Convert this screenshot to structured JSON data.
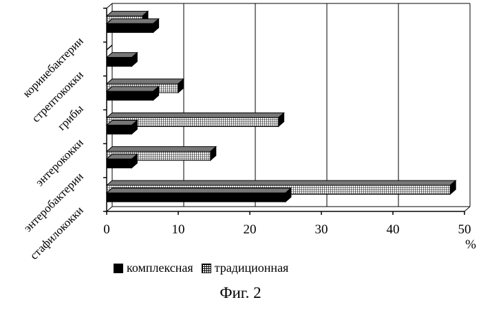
{
  "chart_data": {
    "type": "bar",
    "orientation": "horizontal",
    "categories": [
      "стафилококки",
      "энтеробактерии",
      "энтерококки",
      "грибы",
      "стрептококки",
      "коринебактерии"
    ],
    "series": [
      {
        "name": "комплексная",
        "values": [
          25,
          3.5,
          3.5,
          6.5,
          3.5,
          6.5
        ],
        "fill": "solid",
        "color": "#000000"
      },
      {
        "name": "традиционная",
        "values": [
          48,
          14.5,
          24,
          10,
          0,
          5
        ],
        "fill": "grid-pattern",
        "color": "#000000"
      }
    ],
    "xlim": [
      0,
      50
    ],
    "xticks": [
      0,
      10,
      20,
      30,
      40,
      50
    ],
    "xunit": "%",
    "grid": true,
    "legend_position": "bottom",
    "three_d": true
  },
  "caption": "Фиг. 2"
}
